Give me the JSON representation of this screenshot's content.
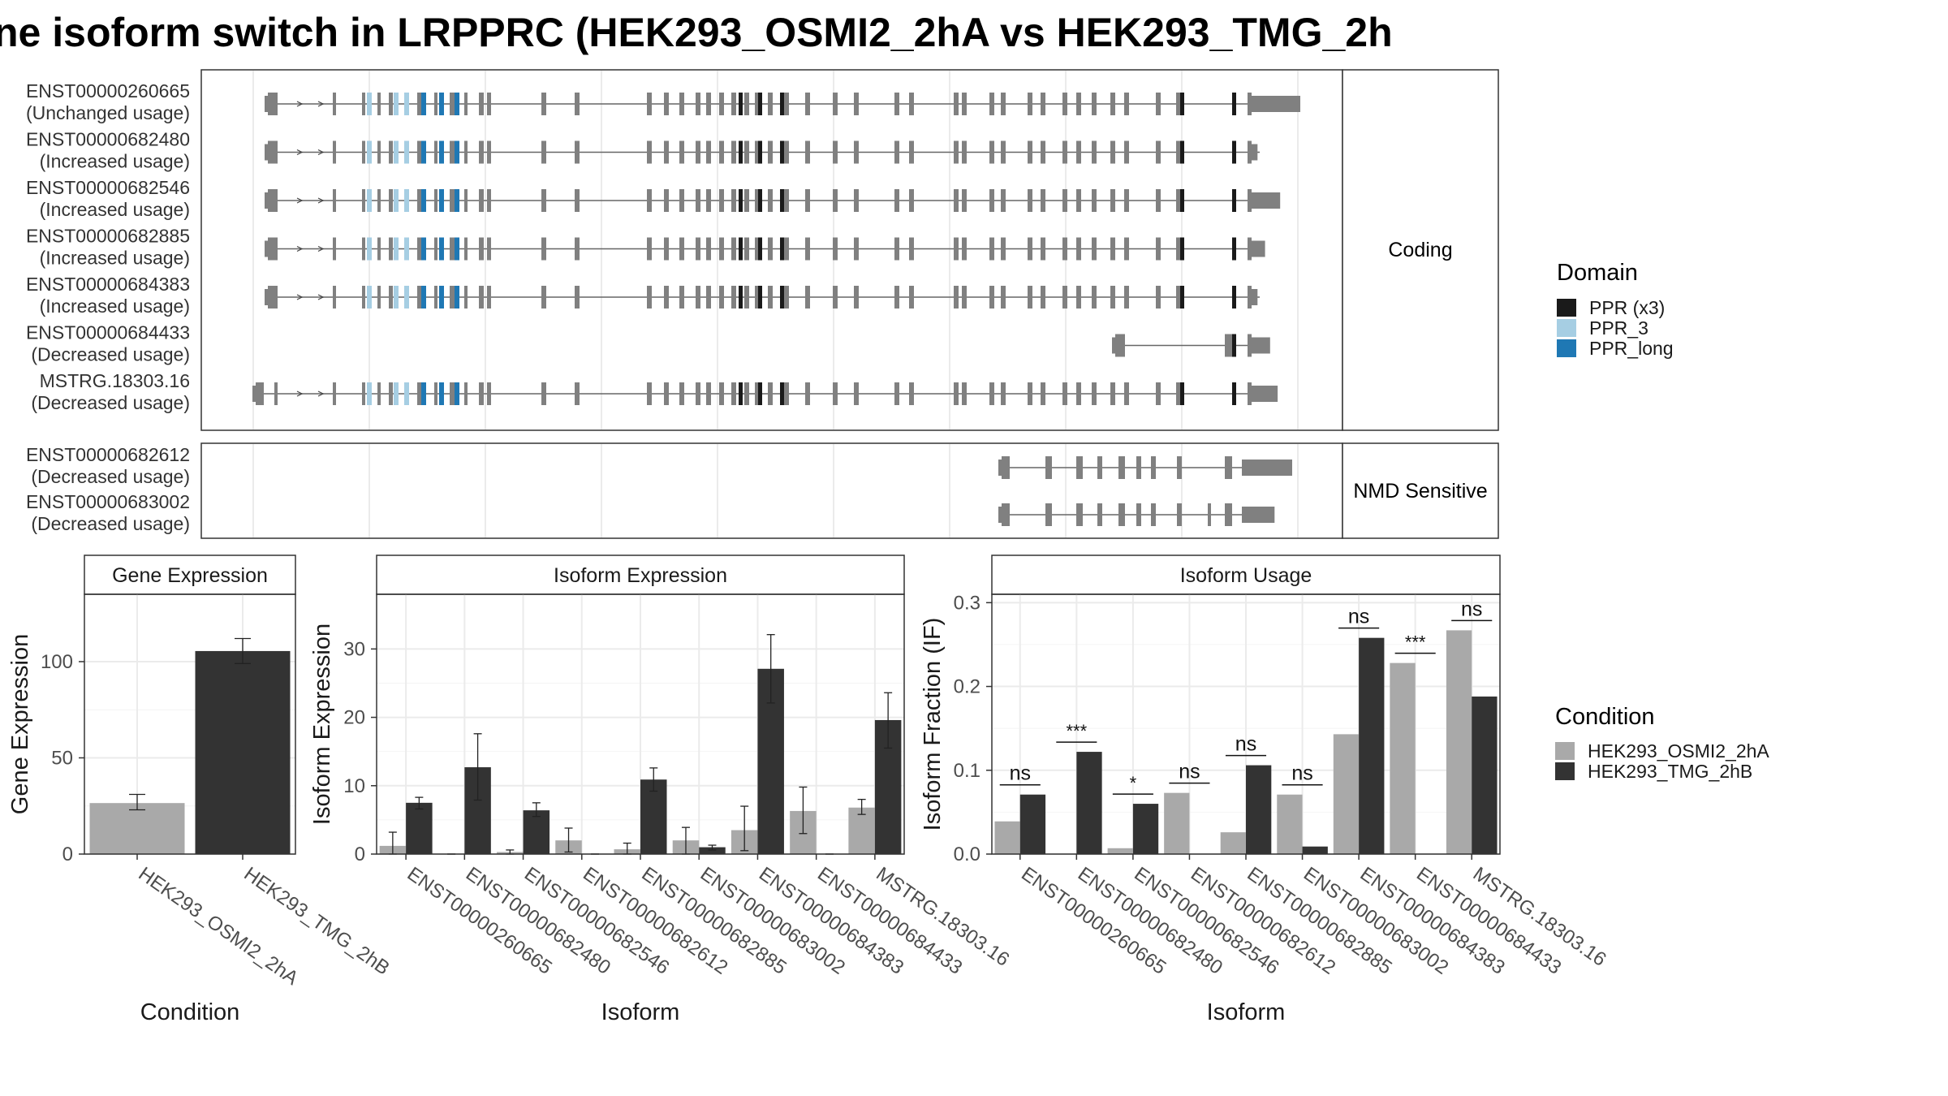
{
  "title": "ne isoform switch in LRPPRC (HEK293_OSMI2_2hA vs HEK293_TMG_2h",
  "colors": {
    "exon": "#808080",
    "ppr_x3": "#1a1a1a",
    "ppr_3": "#a6cee3",
    "ppr_long": "#1f78b4",
    "cond_a": "#a9a9a9",
    "cond_b": "#333333"
  },
  "structure": {
    "coding_label": "Coding",
    "nmd_label": "NMD Sensitive",
    "coding": [
      {
        "id": "ENST00000260665",
        "usage": "(Unchanged usage)",
        "variant": "full",
        "tail": 1.0
      },
      {
        "id": "ENST00000682480",
        "usage": "(Increased usage)",
        "variant": "full",
        "tail": 0.15
      },
      {
        "id": "ENST00000682546",
        "usage": "(Increased usage)",
        "variant": "full",
        "tail": 0.6
      },
      {
        "id": "ENST00000682885",
        "usage": "(Increased usage)",
        "variant": "full",
        "tail": 0.3
      },
      {
        "id": "ENST00000684383",
        "usage": "(Increased usage)",
        "variant": "alt_start",
        "tail": 0.15
      },
      {
        "id": "ENST00000684433",
        "usage": "(Decreased usage)",
        "variant": "short",
        "tail": 0.4
      },
      {
        "id": "MSTRG.18303.16",
        "usage": "(Decreased usage)",
        "variant": "extended",
        "tail": 0.55
      }
    ],
    "nmd": [
      {
        "id": "ENST00000682612",
        "usage": "(Decreased usage)",
        "variant": "nmd1",
        "tail": 1.0
      },
      {
        "id": "ENST00000683002",
        "usage": "(Decreased usage)",
        "variant": "nmd2",
        "tail": 0.65
      }
    ]
  },
  "legend_domain": {
    "title": "Domain",
    "items": [
      {
        "label": "PPR (x3)",
        "color": "#1a1a1a"
      },
      {
        "label": "PPR_3",
        "color": "#a6cee3"
      },
      {
        "label": "PPR_long",
        "color": "#1f78b4"
      }
    ]
  },
  "legend_condition": {
    "title": "Condition",
    "items": [
      {
        "label": "HEK293_OSMI2_2hA",
        "color": "#a9a9a9"
      },
      {
        "label": "HEK293_TMG_2hB",
        "color": "#333333"
      }
    ]
  },
  "chart_data": [
    {
      "type": "bar",
      "title": "Gene Expression",
      "xlabel": "Condition",
      "ylabel": "Gene Expression",
      "ylim": [
        0,
        135
      ],
      "yticks": [
        0,
        50,
        100
      ],
      "categories": [
        "HEK293_OSMI2_2hA",
        "HEK293_TMG_2hB"
      ],
      "values": [
        26.5,
        105.5
      ],
      "errors": [
        [
          23,
          31
        ],
        [
          99,
          112
        ]
      ]
    },
    {
      "type": "bar",
      "title": "Isoform Expression",
      "xlabel": "Isoform",
      "ylabel": "Isoform Expression",
      "ylim": [
        0,
        38
      ],
      "yticks": [
        0,
        10,
        20,
        30
      ],
      "categories": [
        "ENST00000260665",
        "ENST00000682480",
        "ENST00000682546",
        "ENST00000682612",
        "ENST00000682885",
        "ENST00000683002",
        "ENST00000684383",
        "ENST00000684433",
        "MSTRG.18303.16"
      ],
      "series": [
        {
          "name": "HEK293_OSMI2_2hA",
          "values": [
            1.2,
            0,
            0.3,
            2.0,
            0.7,
            2.0,
            3.5,
            6.3,
            6.8
          ],
          "errors": [
            [
              0,
              3.2
            ],
            [
              0,
              0
            ],
            [
              0,
              0.6
            ],
            [
              0.3,
              3.8
            ],
            [
              0,
              1.6
            ],
            [
              0,
              3.9
            ],
            [
              0.5,
              7.0
            ],
            [
              3.0,
              9.8
            ],
            [
              5.8,
              8.0
            ]
          ]
        },
        {
          "name": "HEK293_TMG_2hB",
          "values": [
            7.5,
            12.7,
            6.4,
            0,
            10.9,
            1.0,
            27.1,
            0,
            19.6
          ],
          "errors": [
            [
              6.6,
              8.3
            ],
            [
              7.9,
              17.6
            ],
            [
              5.5,
              7.5
            ],
            [
              0,
              0
            ],
            [
              9.2,
              12.6
            ],
            [
              0.6,
              1.3
            ],
            [
              22.1,
              32.1
            ],
            [
              0,
              0
            ],
            [
              15.5,
              23.6
            ]
          ]
        }
      ]
    },
    {
      "type": "bar",
      "title": "Isoform Usage",
      "xlabel": "Isoform",
      "ylabel": "Isoform Fraction (IF)",
      "ylim": [
        0,
        0.31
      ],
      "yticks": [
        0.0,
        0.1,
        0.2,
        0.3
      ],
      "ytick_labels": [
        "0.0",
        "0.1",
        "0.2",
        "0.3"
      ],
      "categories": [
        "ENST00000260665",
        "ENST00000682480",
        "ENST00000682546",
        "ENST00000682612",
        "ENST00000682885",
        "ENST00000683002",
        "ENST00000684383",
        "ENST00000684433",
        "MSTRG.18303.16"
      ],
      "series": [
        {
          "name": "HEK293_OSMI2_2hA",
          "values": [
            0.039,
            0.0,
            0.007,
            0.073,
            0.026,
            0.071,
            0.143,
            0.228,
            0.267
          ]
        },
        {
          "name": "HEK293_TMG_2hB",
          "values": [
            0.071,
            0.122,
            0.06,
            0.0,
            0.106,
            0.009,
            0.258,
            0.0,
            0.188
          ]
        }
      ],
      "significance": [
        "ns",
        "***",
        "*",
        "ns",
        "ns",
        "ns",
        "ns",
        "***",
        "ns"
      ]
    }
  ]
}
